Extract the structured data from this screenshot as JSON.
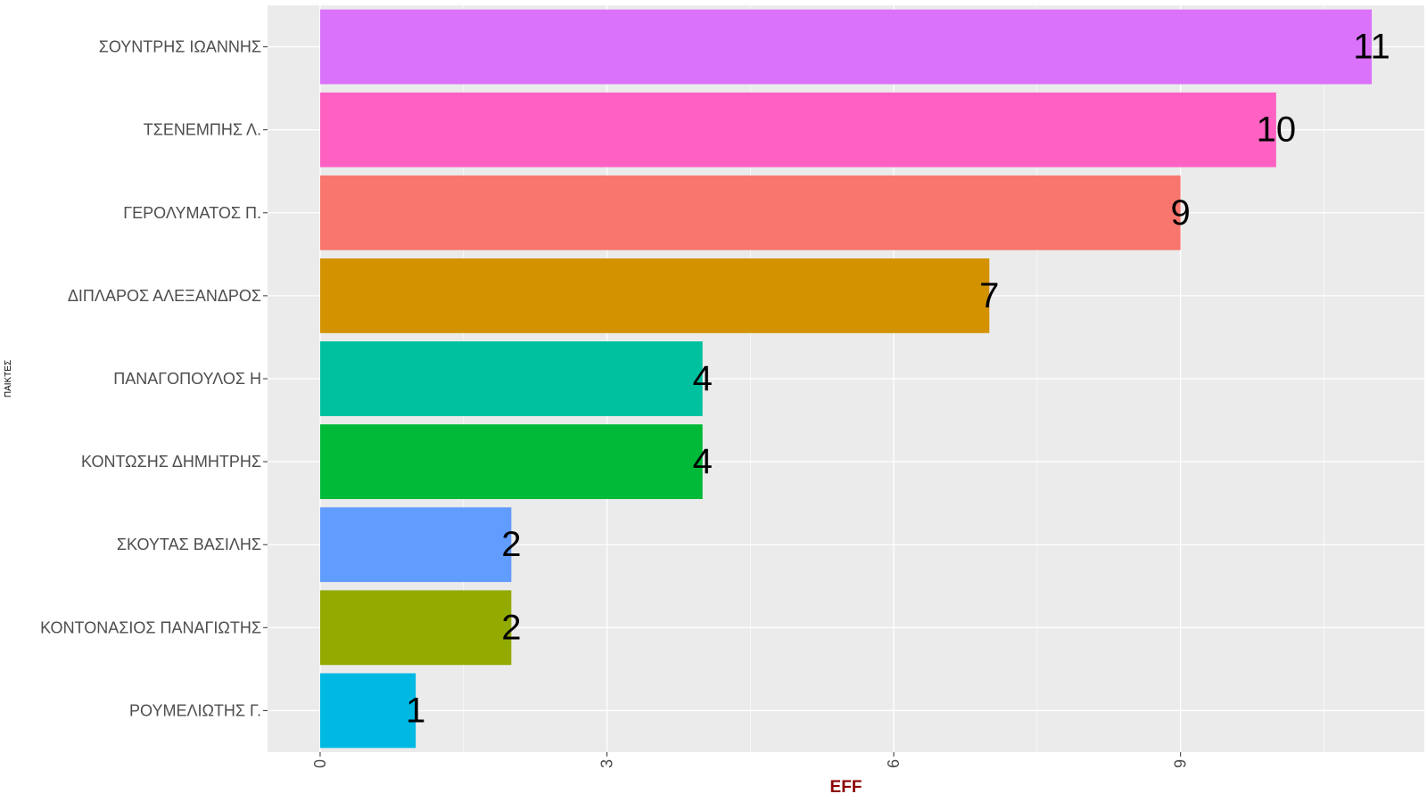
{
  "chart_data": {
    "type": "bar",
    "orientation": "horizontal",
    "categories": [
      "ΣΟΥΝΤΡΗΣ ΙΩΑΝΝΗΣ",
      "ΤΣΕΝΕΜΠΗΣ Λ.",
      "ΓΕΡΟΛΥΜΑΤΟΣ Π.",
      "ΔΙΠΛΑΡΟΣ ΑΛΕΞΑΝΔΡΟΣ",
      "ΠΑΝΑΓΟΠΟΥΛΟΣ Η",
      "ΚΟΝΤΩΣΗΣ ΔΗΜΗΤΡΗΣ",
      "ΣΚΟΥΤΑΣ ΒΑΣΙΛΗΣ",
      "ΚΟΝΤΟΝΑΣΙΟΣ ΠΑΝΑΓΙΩΤΗΣ",
      "ΡΟΥΜΕΛΙΩΤΗΣ Γ."
    ],
    "values": [
      11,
      10,
      9,
      7,
      4,
      4,
      2,
      2,
      1
    ],
    "data_labels": [
      "11",
      "10",
      "9",
      "7",
      "4",
      "4",
      "2",
      "2",
      "1"
    ],
    "colors": [
      "#DB72FB",
      "#FF61C3",
      "#F8766D",
      "#D39200",
      "#00C19F",
      "#00BA38",
      "#619CFF",
      "#93AA00",
      "#00B9E3"
    ],
    "xlabel": "EFF",
    "ylabel": "ΠΑΙΚΤΕΣ",
    "xlim": [
      -0.55,
      11.55
    ],
    "xticks": [
      0,
      3,
      6,
      9
    ],
    "xtick_labels": [
      "0",
      "3",
      "6",
      "9"
    ],
    "xlabel_color": "#8B0000",
    "panel_background": "#EBEBEB",
    "grid": true,
    "legend": "none"
  }
}
